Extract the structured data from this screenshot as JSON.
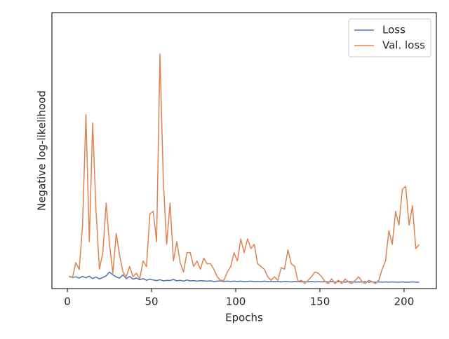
{
  "chart_data": {
    "type": "line",
    "xlabel": "Epochs",
    "ylabel": "Negative log-likelihood",
    "x": [
      1,
      3,
      5,
      7,
      9,
      11,
      13,
      15,
      17,
      19,
      21,
      23,
      25,
      27,
      29,
      31,
      33,
      35,
      37,
      39,
      41,
      43,
      45,
      47,
      49,
      51,
      53,
      55,
      57,
      59,
      61,
      63,
      65,
      67,
      69,
      71,
      73,
      75,
      77,
      79,
      81,
      83,
      85,
      87,
      89,
      91,
      93,
      95,
      97,
      99,
      101,
      103,
      105,
      107,
      109,
      111,
      113,
      115,
      117,
      119,
      121,
      123,
      125,
      127,
      129,
      131,
      133,
      135,
      137,
      139,
      141,
      143,
      145,
      147,
      149,
      151,
      153,
      155,
      157,
      159,
      161,
      163,
      165,
      167,
      169,
      171,
      173,
      175,
      177,
      179,
      181,
      183,
      185,
      187,
      189,
      191,
      193,
      195,
      197,
      199,
      201,
      203,
      205,
      207,
      209
    ],
    "series": [
      {
        "name": "Loss",
        "color": "#4c72b0",
        "values": [
          4.5,
          4.0,
          4.3,
          3.8,
          4.4,
          3.9,
          4.5,
          3.6,
          4.2,
          3.5,
          4.0,
          4.6,
          6.0,
          5.0,
          4.2,
          3.8,
          5.0,
          3.6,
          4.4,
          3.4,
          3.8,
          3.2,
          3.6,
          3.0,
          3.4,
          3.1,
          2.9,
          3.2,
          2.8,
          3.0,
          2.9,
          3.3,
          2.8,
          3.0,
          2.7,
          3.1,
          2.8,
          2.9,
          2.7,
          2.9,
          2.8,
          2.7,
          2.8,
          2.6,
          2.7,
          2.8,
          2.6,
          2.7,
          2.6,
          2.7,
          2.6,
          2.7,
          2.5,
          2.6,
          2.7,
          2.5,
          2.6,
          2.5,
          2.7,
          2.5,
          2.6,
          2.5,
          2.6,
          2.4,
          2.6,
          2.5,
          2.4,
          2.6,
          2.5,
          2.4,
          2.5,
          2.4,
          2.6,
          2.4,
          2.5,
          2.4,
          2.5,
          2.4,
          2.5,
          2.3,
          2.5,
          2.4,
          2.3,
          2.5,
          2.4,
          2.3,
          2.4,
          2.3,
          2.5,
          2.3,
          2.4,
          2.3,
          2.4,
          2.3,
          2.4,
          2.3,
          2.4,
          2.3,
          2.3,
          2.4,
          2.3,
          2.3,
          2.4,
          2.3,
          2.3
        ]
      },
      {
        "name": "Val. loss",
        "color": "#dd8452",
        "values": [
          4.3,
          4.0,
          9.4,
          6.9,
          23,
          63,
          17,
          60,
          28,
          7,
          13,
          31,
          16,
          5.6,
          20,
          12,
          6,
          4.3,
          8,
          4.3,
          5.6,
          3.5,
          10,
          8,
          27,
          28,
          17,
          85,
          39,
          16,
          31,
          10,
          17,
          9.4,
          6,
          13,
          13,
          8,
          10,
          7,
          11,
          9,
          9,
          7,
          4.3,
          3,
          3,
          6,
          8,
          13,
          10,
          18,
          13,
          18,
          14.5,
          16,
          9,
          8,
          7,
          4.3,
          3,
          4.3,
          3,
          7.6,
          7,
          14,
          9,
          8,
          2.5,
          3,
          1.8,
          3,
          4.3,
          6,
          5.6,
          4.3,
          2.5,
          1.8,
          3.5,
          1.8,
          3,
          1.8,
          3.5,
          2.3,
          1.8,
          3,
          4.3,
          2.5,
          1.8,
          3,
          2.5,
          1.8,
          3,
          7,
          10,
          21,
          16,
          28,
          23,
          36,
          37,
          23,
          30,
          14.5,
          16
        ]
      }
    ],
    "xlim": [
      -9.2,
      219.2
    ],
    "xticks": [
      0,
      50,
      100,
      150,
      200
    ],
    "ylim": [
      0,
      100
    ],
    "legend": "upper right",
    "grid": false
  }
}
